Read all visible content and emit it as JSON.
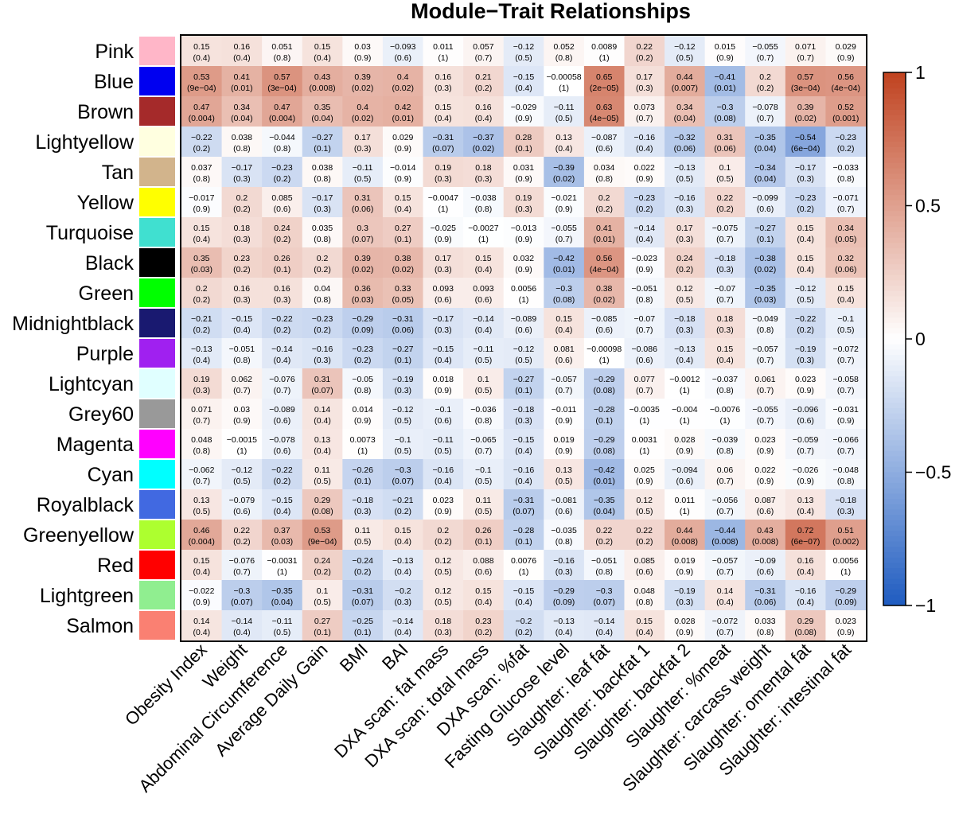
{
  "chart_data": {
    "type": "heatmap",
    "title": "Module−Trait Relationships",
    "rows": [
      "Pink",
      "Blue",
      "Brown",
      "Lightyellow",
      "Tan",
      "Yellow",
      "Turquoise",
      "Black",
      "Green",
      "Midnightblack",
      "Purple",
      "Lightcyan",
      "Grey60",
      "Magenta",
      "Cyan",
      "Royalblack",
      "Greenyellow",
      "Red",
      "Lightgreen",
      "Salmon"
    ],
    "row_colors": [
      "#FFB6C8",
      "#0000F0",
      "#A52A2A",
      "#FFFFE0",
      "#D2B48C",
      "#FFFF00",
      "#40E0D0",
      "#000000",
      "#00FF00",
      "#191970",
      "#A020F0",
      "#E0FFFF",
      "#999999",
      "#FF00FF",
      "#00FFFF",
      "#4169E1",
      "#ADFF2F",
      "#FF0000",
      "#90EE90",
      "#FA8072"
    ],
    "columns": [
      "Obesity Index",
      "Weight",
      "Abdominal Circumference",
      "Average Daily Gain",
      "BMI",
      "BAI",
      "DXA scan: fat mass",
      "DXA scan: total mass",
      "DXA scan: %fat",
      "Fasting Glucose level",
      "Slaughter: leaf fat",
      "Slaughter: backfat 1",
      "Slaughter: backfat 2",
      "Slaughter: %meat",
      "Slaughter: carcass weight",
      "Slaughter: omental fat",
      "Slaughter: intestinal fat"
    ],
    "correlations": [
      [
        "0.15",
        "0.16",
        "0.051",
        "0.15",
        "0.03",
        "−0.093",
        "0.011",
        "0.057",
        "−0.12",
        "0.052",
        "0.0089",
        "0.22",
        "−0.12",
        "0.015",
        "−0.055",
        "0.071",
        "0.029"
      ],
      [
        "0.53",
        "0.41",
        "0.57",
        "0.43",
        "0.39",
        "0.4",
        "0.16",
        "0.21",
        "−0.15",
        "−0.00058",
        "0.65",
        "0.17",
        "0.44",
        "−0.41",
        "0.2",
        "0.57",
        "0.56"
      ],
      [
        "0.47",
        "0.34",
        "0.47",
        "0.35",
        "0.4",
        "0.42",
        "0.15",
        "0.16",
        "−0.029",
        "−0.11",
        "0.63",
        "0.073",
        "0.34",
        "−0.3",
        "−0.078",
        "0.39",
        "0.52"
      ],
      [
        "−0.22",
        "0.038",
        "−0.044",
        "−0.27",
        "0.17",
        "0.029",
        "−0.31",
        "−0.37",
        "0.28",
        "0.13",
        "−0.087",
        "−0.16",
        "−0.32",
        "0.31",
        "−0.35",
        "−0.54",
        "−0.23"
      ],
      [
        "0.037",
        "−0.17",
        "−0.23",
        "0.038",
        "−0.11",
        "−0.014",
        "0.19",
        "0.18",
        "0.031",
        "−0.39",
        "0.034",
        "0.022",
        "−0.13",
        "0.1",
        "−0.34",
        "−0.17",
        "−0.033"
      ],
      [
        "−0.017",
        "0.2",
        "0.085",
        "−0.17",
        "0.31",
        "0.15",
        "−0.0047",
        "−0.038",
        "0.19",
        "−0.021",
        "0.2",
        "−0.23",
        "−0.16",
        "0.22",
        "−0.099",
        "−0.23",
        "−0.071"
      ],
      [
        "0.15",
        "0.18",
        "0.24",
        "0.035",
        "0.3",
        "0.27",
        "−0.025",
        "−0.0027",
        "−0.013",
        "−0.055",
        "0.41",
        "−0.14",
        "0.17",
        "−0.075",
        "−0.27",
        "0.15",
        "0.34"
      ],
      [
        "0.35",
        "0.23",
        "0.26",
        "0.2",
        "0.39",
        "0.38",
        "0.17",
        "0.15",
        "0.032",
        "−0.42",
        "0.56",
        "−0.023",
        "0.24",
        "−0.18",
        "−0.38",
        "0.15",
        "0.32"
      ],
      [
        "0.2",
        "0.16",
        "0.16",
        "0.04",
        "0.36",
        "0.33",
        "0.093",
        "0.093",
        "0.0056",
        "−0.3",
        "0.38",
        "−0.051",
        "0.12",
        "−0.07",
        "−0.35",
        "−0.12",
        "0.15"
      ],
      [
        "−0.21",
        "−0.15",
        "−0.22",
        "−0.23",
        "−0.29",
        "−0.31",
        "−0.17",
        "−0.14",
        "−0.089",
        "0.15",
        "−0.085",
        "−0.07",
        "−0.18",
        "0.18",
        "−0.049",
        "−0.22",
        "−0.1"
      ],
      [
        "−0.13",
        "−0.051",
        "−0.14",
        "−0.16",
        "−0.23",
        "−0.27",
        "−0.15",
        "−0.11",
        "−0.12",
        "0.081",
        "−0.00098",
        "−0.086",
        "−0.13",
        "0.15",
        "−0.057",
        "−0.19",
        "−0.072"
      ],
      [
        "0.19",
        "0.062",
        "−0.076",
        "0.31",
        "−0.05",
        "−0.19",
        "0.018",
        "0.1",
        "−0.27",
        "−0.057",
        "−0.29",
        "0.077",
        "−0.0012",
        "−0.037",
        "0.061",
        "0.023",
        "−0.058"
      ],
      [
        "0.071",
        "0.03",
        "−0.089",
        "0.14",
        "0.014",
        "−0.12",
        "−0.1",
        "−0.036",
        "−0.18",
        "−0.011",
        "−0.28",
        "−0.0035",
        "−0.004",
        "−0.0076",
        "−0.055",
        "−0.096",
        "−0.031"
      ],
      [
        "0.048",
        "−0.0015",
        "−0.078",
        "0.13",
        "0.0073",
        "−0.1",
        "−0.11",
        "−0.065",
        "−0.15",
        "0.019",
        "−0.29",
        "0.0031",
        "0.028",
        "−0.039",
        "0.023",
        "−0.059",
        "−0.066"
      ],
      [
        "−0.062",
        "−0.12",
        "−0.22",
        "0.11",
        "−0.26",
        "−0.3",
        "−0.16",
        "−0.1",
        "−0.16",
        "0.13",
        "−0.42",
        "0.025",
        "−0.094",
        "0.06",
        "0.022",
        "−0.026",
        "−0.048"
      ],
      [
        "0.13",
        "−0.079",
        "−0.15",
        "0.29",
        "−0.18",
        "−0.21",
        "0.023",
        "0.11",
        "−0.31",
        "−0.081",
        "−0.35",
        "0.12",
        "0.011",
        "−0.056",
        "0.087",
        "0.13",
        "−0.18"
      ],
      [
        "0.46",
        "0.22",
        "0.37",
        "0.53",
        "0.11",
        "0.15",
        "0.2",
        "0.26",
        "−0.28",
        "−0.035",
        "0.22",
        "0.22",
        "0.44",
        "−0.44",
        "0.43",
        "0.72",
        "0.51"
      ],
      [
        "0.15",
        "−0.076",
        "−0.0031",
        "0.24",
        "−0.24",
        "−0.13",
        "0.12",
        "0.088",
        "0.0076",
        "−0.16",
        "−0.051",
        "0.085",
        "0.019",
        "−0.057",
        "−0.09",
        "0.16",
        "0.0056"
      ],
      [
        "−0.022",
        "−0.3",
        "−0.35",
        "0.1",
        "−0.31",
        "−0.2",
        "0.12",
        "0.15",
        "−0.15",
        "−0.29",
        "−0.3",
        "0.048",
        "−0.19",
        "0.14",
        "−0.31",
        "−0.16",
        "−0.29"
      ],
      [
        "0.14",
        "−0.14",
        "−0.11",
        "0.27",
        "−0.25",
        "−0.14",
        "0.18",
        "0.23",
        "−0.2",
        "−0.13",
        "−0.14",
        "0.15",
        "0.028",
        "−0.072",
        "0.033",
        "0.29",
        "0.023"
      ]
    ],
    "pvalues": [
      [
        "(0.4)",
        "(0.4)",
        "(0.8)",
        "(0.4)",
        "(0.9)",
        "(0.6)",
        "(1)",
        "(0.7)",
        "(0.5)",
        "(0.8)",
        "(1)",
        "(0.2)",
        "(0.5)",
        "(0.9)",
        "(0.7)",
        "(0.7)",
        "(0.9)"
      ],
      [
        "(9e−04)",
        "(0.01)",
        "(3e−04)",
        "(0.008)",
        "(0.02)",
        "(0.02)",
        "(0.3)",
        "(0.2)",
        "(0.4)",
        "(1)",
        "(2e−05)",
        "(0.3)",
        "(0.007)",
        "(0.01)",
        "(0.2)",
        "(3e−04)",
        "(4e−04)"
      ],
      [
        "(0.004)",
        "(0.04)",
        "(0.004)",
        "(0.04)",
        "(0.02)",
        "(0.01)",
        "(0.4)",
        "(0.4)",
        "(0.9)",
        "(0.5)",
        "(4e−05)",
        "(0.7)",
        "(0.04)",
        "(0.08)",
        "(0.7)",
        "(0.02)",
        "(0.001)"
      ],
      [
        "(0.2)",
        "(0.8)",
        "(0.8)",
        "(0.1)",
        "(0.3)",
        "(0.9)",
        "(0.07)",
        "(0.02)",
        "(0.1)",
        "(0.4)",
        "(0.6)",
        "(0.4)",
        "(0.06)",
        "(0.06)",
        "(0.04)",
        "(6e−04)",
        "(0.2)"
      ],
      [
        "(0.8)",
        "(0.3)",
        "(0.2)",
        "(0.8)",
        "(0.5)",
        "(0.9)",
        "(0.3)",
        "(0.3)",
        "(0.9)",
        "(0.02)",
        "(0.8)",
        "(0.9)",
        "(0.5)",
        "(0.5)",
        "(0.04)",
        "(0.3)",
        "(0.8)"
      ],
      [
        "(0.9)",
        "(0.2)",
        "(0.6)",
        "(0.3)",
        "(0.06)",
        "(0.4)",
        "(1)",
        "(0.8)",
        "(0.3)",
        "(0.9)",
        "(0.2)",
        "(0.2)",
        "(0.3)",
        "(0.2)",
        "(0.6)",
        "(0.2)",
        "(0.7)"
      ],
      [
        "(0.4)",
        "(0.3)",
        "(0.2)",
        "(0.8)",
        "(0.07)",
        "(0.1)",
        "(0.9)",
        "(1)",
        "(0.9)",
        "(0.7)",
        "(0.01)",
        "(0.4)",
        "(0.3)",
        "(0.7)",
        "(0.1)",
        "(0.4)",
        "(0.05)"
      ],
      [
        "(0.03)",
        "(0.2)",
        "(0.1)",
        "(0.2)",
        "(0.02)",
        "(0.02)",
        "(0.3)",
        "(0.4)",
        "(0.9)",
        "(0.01)",
        "(4e−04)",
        "(0.9)",
        "(0.2)",
        "(0.3)",
        "(0.02)",
        "(0.4)",
        "(0.06)"
      ],
      [
        "(0.2)",
        "(0.3)",
        "(0.3)",
        "(0.8)",
        "(0.03)",
        "(0.05)",
        "(0.6)",
        "(0.6)",
        "(1)",
        "(0.08)",
        "(0.02)",
        "(0.8)",
        "(0.5)",
        "(0.7)",
        "(0.03)",
        "(0.5)",
        "(0.4)"
      ],
      [
        "(0.2)",
        "(0.4)",
        "(0.2)",
        "(0.2)",
        "(0.09)",
        "(0.06)",
        "(0.3)",
        "(0.4)",
        "(0.6)",
        "(0.4)",
        "(0.6)",
        "(0.7)",
        "(0.3)",
        "(0.3)",
        "(0.8)",
        "(0.2)",
        "(0.5)"
      ],
      [
        "(0.4)",
        "(0.8)",
        "(0.4)",
        "(0.3)",
        "(0.2)",
        "(0.1)",
        "(0.4)",
        "(0.5)",
        "(0.5)",
        "(0.6)",
        "(1)",
        "(0.6)",
        "(0.4)",
        "(0.4)",
        "(0.7)",
        "(0.3)",
        "(0.7)"
      ],
      [
        "(0.3)",
        "(0.7)",
        "(0.7)",
        "(0.07)",
        "(0.8)",
        "(0.3)",
        "(0.9)",
        "(0.5)",
        "(0.1)",
        "(0.7)",
        "(0.08)",
        "(0.7)",
        "(1)",
        "(0.8)",
        "(0.7)",
        "(0.9)",
        "(0.7)"
      ],
      [
        "(0.7)",
        "(0.9)",
        "(0.6)",
        "(0.4)",
        "(0.9)",
        "(0.5)",
        "(0.6)",
        "(0.8)",
        "(0.3)",
        "(0.9)",
        "(0.1)",
        "(1)",
        "(1)",
        "(1)",
        "(0.7)",
        "(0.6)",
        "(0.9)"
      ],
      [
        "(0.8)",
        "(1)",
        "(0.6)",
        "(0.4)",
        "(1)",
        "(0.5)",
        "(0.5)",
        "(0.7)",
        "(0.4)",
        "(0.9)",
        "(0.08)",
        "(1)",
        "(0.9)",
        "(0.8)",
        "(0.9)",
        "(0.7)",
        "(0.7)"
      ],
      [
        "(0.7)",
        "(0.5)",
        "(0.2)",
        "(0.5)",
        "(0.1)",
        "(0.07)",
        "(0.4)",
        "(0.5)",
        "(0.4)",
        "(0.5)",
        "(0.01)",
        "(0.9)",
        "(0.6)",
        "(0.7)",
        "(0.9)",
        "(0.9)",
        "(0.8)"
      ],
      [
        "(0.5)",
        "(0.6)",
        "(0.4)",
        "(0.08)",
        "(0.3)",
        "(0.2)",
        "(0.9)",
        "(0.5)",
        "(0.07)",
        "(0.6)",
        "(0.04)",
        "(0.5)",
        "(1)",
        "(0.7)",
        "(0.6)",
        "(0.4)",
        "(0.3)"
      ],
      [
        "(0.004)",
        "(0.2)",
        "(0.03)",
        "(9e−04)",
        "(0.5)",
        "(0.4)",
        "(0.2)",
        "(0.1)",
        "(0.1)",
        "(0.8)",
        "(0.2)",
        "(0.2)",
        "(0.008)",
        "(0.008)",
        "(0.008)",
        "(6e−07)",
        "(0.002)"
      ],
      [
        "(0.4)",
        "(0.7)",
        "(1)",
        "(0.2)",
        "(0.2)",
        "(0.4)",
        "(0.5)",
        "(0.6)",
        "(1)",
        "(0.3)",
        "(0.8)",
        "(0.6)",
        "(0.9)",
        "(0.7)",
        "(0.6)",
        "(0.4)",
        "(1)"
      ],
      [
        "(0.9)",
        "(0.07)",
        "(0.04)",
        "(0.5)",
        "(0.07)",
        "(0.3)",
        "(0.5)",
        "(0.4)",
        "(0.4)",
        "(0.09)",
        "(0.07)",
        "(0.8)",
        "(0.3)",
        "(0.4)",
        "(0.06)",
        "(0.4)",
        "(0.09)"
      ],
      [
        "(0.4)",
        "(0.4)",
        "(0.5)",
        "(0.1)",
        "(0.1)",
        "(0.4)",
        "(0.3)",
        "(0.2)",
        "(0.2)",
        "(0.4)",
        "(0.4)",
        "(0.4)",
        "(0.9)",
        "(0.7)",
        "(0.8)",
        "(0.08)",
        "(0.9)"
      ]
    ],
    "colorbar": {
      "min": -1,
      "max": 1,
      "ticks": [
        "1",
        "0.5",
        "0",
        "−0.5",
        "−1"
      ],
      "tick_values": [
        1,
        0.5,
        0,
        -0.5,
        -1
      ],
      "colors": {
        "neg": "#1E5BC0",
        "mid": "#FFFFFF",
        "pos": "#C0421F"
      }
    }
  }
}
